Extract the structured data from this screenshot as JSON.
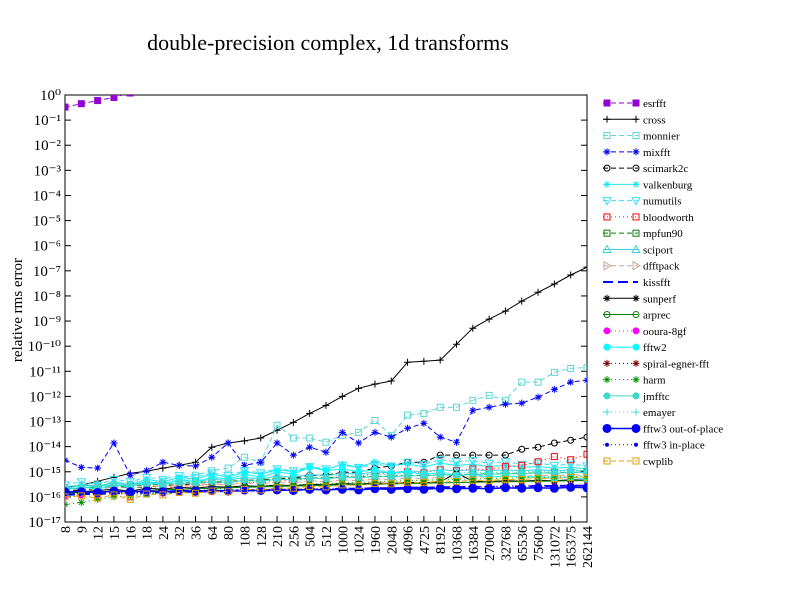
{
  "chart_data": {
    "type": "line",
    "title": "double-precision complex, 1d transforms",
    "ylabel": "relative rms error",
    "log_y": true,
    "categories": [
      "8",
      "9",
      "12",
      "15",
      "16",
      "18",
      "24",
      "32",
      "36",
      "64",
      "80",
      "108",
      "128",
      "210",
      "256",
      "504",
      "512",
      "1000",
      "1024",
      "1960",
      "2048",
      "4096",
      "4725",
      "8192",
      "10368",
      "16384",
      "27000",
      "32768",
      "65536",
      "75600",
      "131072",
      "165375",
      "262144"
    ],
    "ylim": [
      1e-17,
      1
    ],
    "yticks": [
      {
        "value": 1e-17,
        "label": "10⁻¹⁷"
      },
      {
        "value": 1e-16,
        "label": "10⁻¹⁶"
      },
      {
        "value": 1e-15,
        "label": "10⁻¹⁵"
      },
      {
        "value": 1e-14,
        "label": "10⁻¹⁴"
      },
      {
        "value": 1e-13,
        "label": "10⁻¹³"
      },
      {
        "value": 1e-12,
        "label": "10⁻¹²"
      },
      {
        "value": 1e-11,
        "label": "10⁻¹¹"
      },
      {
        "value": 1e-10,
        "label": "10⁻¹⁰"
      },
      {
        "value": 1e-09,
        "label": "10⁻⁹"
      },
      {
        "value": 1e-08,
        "label": "10⁻⁸"
      },
      {
        "value": 1e-07,
        "label": "10⁻⁷"
      },
      {
        "value": 1e-06,
        "label": "10⁻⁶"
      },
      {
        "value": 1e-05,
        "label": "10⁻⁵"
      },
      {
        "value": 0.0001,
        "label": "10⁻⁴"
      },
      {
        "value": 0.001,
        "label": "10⁻³"
      },
      {
        "value": 0.01,
        "label": "10⁻²"
      },
      {
        "value": 0.1,
        "label": "10⁻¹"
      },
      {
        "value": 1,
        "label": "10⁰"
      }
    ],
    "legend": "right",
    "series": [
      {
        "name": "esrfft",
        "color": "#9400d3",
        "values": [
          0.33,
          0.45,
          0.6,
          0.8,
          1.2,
          null,
          null,
          null,
          null,
          null,
          null,
          null,
          null,
          null,
          null,
          null,
          null,
          null,
          null,
          null,
          null,
          null,
          null,
          null,
          null,
          null,
          null,
          null,
          null,
          null,
          null,
          null,
          null
        ]
      },
      {
        "name": "cross",
        "color": "#000000",
        "values": [
          2.4e-16,
          2.9e-16,
          4.2e-16,
          6e-16,
          8.7e-16,
          1.05e-15,
          1.4e-15,
          1.8e-15,
          2.4e-15,
          9.5e-15,
          1.4e-14,
          1.7e-14,
          2.2e-14,
          4.5e-14,
          9.3e-14,
          2.1e-13,
          4.4e-13,
          1e-12,
          2.1e-12,
          3.1e-12,
          4.1e-12,
          2.3e-11,
          2.5e-11,
          2.8e-11,
          1.2e-10,
          5.2e-10,
          1.2e-09,
          2.5e-09,
          6.2e-09,
          1.4e-08,
          3e-08,
          6.8e-08,
          1.4e-07
        ]
      },
      {
        "name": "monnier",
        "color": "#5cd6d6",
        "values": [
          1.8e-16,
          2.2e-16,
          2.4e-16,
          2.9e-16,
          2.9e-16,
          3.5e-16,
          4.2e-16,
          5.5e-16,
          7.3e-16,
          1.1e-15,
          1.4e-15,
          3.8e-15,
          2.4e-15,
          7.1e-14,
          2.2e-14,
          2.2e-14,
          1.5e-14,
          2.8e-14,
          3.7e-14,
          1.1e-13,
          2.8e-14,
          1.8e-13,
          2.1e-13,
          3.7e-13,
          3.7e-13,
          7e-13,
          1.1e-12,
          7e-13,
          3.7e-12,
          3.7e-12,
          9.1e-12,
          1.3e-11,
          1.4e-11
        ]
      },
      {
        "name": "mixfft",
        "color": "#0000ff",
        "values": [
          2.9e-15,
          1.5e-15,
          1.4e-15,
          1.4e-14,
          7.3e-16,
          1.1e-15,
          2.4e-15,
          1.8e-15,
          1.7e-15,
          3.8e-15,
          1.4e-14,
          1.8e-15,
          2.4e-15,
          1.4e-14,
          4.6e-15,
          9.5e-15,
          6e-15,
          3.7e-14,
          1.4e-14,
          3.7e-14,
          2.4e-14,
          5.4e-14,
          8.5e-14,
          2.4e-14,
          1.5e-14,
          2.8e-13,
          3.7e-13,
          4.9e-13,
          5.4e-13,
          9.3e-13,
          1.9e-12,
          3.7e-12,
          4.4e-12
        ]
      },
      {
        "name": "scimark2c",
        "color": "#000000",
        "values": [
          1.8e-16,
          1.8e-16,
          2.2e-16,
          2.4e-16,
          2.4e-16,
          2.4e-16,
          2.9e-16,
          2.9e-16,
          3.5e-16,
          3.8e-16,
          3.8e-16,
          4.6e-16,
          4.6e-16,
          5.5e-16,
          5.5e-16,
          7.3e-16,
          7.3e-16,
          9.5e-16,
          9.5e-16,
          1.4e-15,
          1.7e-15,
          2.4e-15,
          2.4e-15,
          4.6e-15,
          4.6e-15,
          4.6e-15,
          4.6e-15,
          4.6e-15,
          7.9e-15,
          9.5e-15,
          1.4e-14,
          1.8e-14,
          2.4e-14
        ]
      },
      {
        "name": "valkenburg",
        "color": "#1ee8f0",
        "values": [
          2e-16,
          3e-16,
          2.5e-16,
          4e-16,
          3e-16,
          5e-16,
          4e-16,
          6e-16,
          5e-16,
          8e-16,
          6e-16,
          1e-15,
          8e-16,
          1.2e-15,
          1e-15,
          1.5e-15,
          1.2e-15,
          2e-15,
          1.5e-15,
          2.5e-15,
          1.8e-15,
          2e-15,
          1.6e-15,
          2.2e-15,
          1.8e-15,
          2e-15,
          1.6e-15,
          1.8e-15,
          1.5e-15,
          1.6e-15,
          1.4e-15,
          1.5e-15,
          1.3e-15
        ]
      },
      {
        "name": "numutils",
        "color": "#33e0ff",
        "values": [
          3e-16,
          4e-16,
          3e-16,
          5e-16,
          4e-16,
          6e-16,
          5e-16,
          7e-16,
          6e-16,
          9e-16,
          7e-16,
          1.1e-15,
          9e-16,
          1.3e-15,
          1.1e-15,
          1.6e-15,
          1.3e-15,
          1.8e-15,
          1.5e-15,
          2e-15,
          1.7e-15,
          2.4e-15,
          2e-15,
          3e-15,
          2.5e-15,
          2.8e-15,
          2.2e-15,
          2.5e-15,
          2e-15,
          2.2e-15,
          1.8e-15,
          2e-15,
          1.7e-15
        ]
      },
      {
        "name": "bloodworth",
        "color": "#ff0000",
        "values": [
          1.5e-16,
          1.8e-16,
          1.2e-16,
          2e-16,
          1e-16,
          2.5e-16,
          2e-16,
          3e-16,
          2.5e-16,
          3.5e-16,
          3e-16,
          4e-16,
          3.5e-16,
          5e-16,
          4e-16,
          6e-16,
          5e-16,
          7e-16,
          6e-16,
          9e-16,
          8e-16,
          1e-15,
          9e-16,
          1.2e-15,
          1.1e-15,
          1.3e-15,
          1.2e-15,
          1.6e-15,
          1.8e-15,
          2.5e-15,
          4e-15,
          3e-15,
          5e-15
        ]
      },
      {
        "name": "mpfun90",
        "color": "#008000",
        "values": [
          2e-16,
          2.2e-16,
          2.5e-16,
          2.4e-16,
          2.8e-16,
          3e-16,
          3.2e-16,
          3.5e-16,
          3.8e-16,
          4e-16,
          4.2e-16,
          4.5e-16,
          4.8e-16,
          5e-16,
          5.2e-16,
          5.5e-16,
          5.8e-16,
          6e-16,
          6.2e-16,
          6.5e-16,
          6.8e-16,
          7e-16,
          7.2e-16,
          7.5e-16,
          7.8e-16,
          8e-16,
          8.2e-16,
          8.5e-16,
          8.8e-16,
          9e-16,
          9.2e-16,
          9.5e-16,
          9.8e-16
        ]
      },
      {
        "name": "sciport",
        "color": "#40d0e0",
        "values": [
          2.5e-16,
          3e-16,
          2.8e-16,
          3.5e-16,
          3e-16,
          4e-16,
          3.5e-16,
          4.5e-16,
          4e-16,
          5e-16,
          4.5e-16,
          6e-16,
          5e-16,
          7e-16,
          6e-16,
          8e-16,
          7e-16,
          9e-16,
          8e-16,
          1e-15,
          9e-16,
          1.1e-15,
          1e-15,
          1.2e-15,
          1.1e-15,
          1.2e-15,
          1.1e-15,
          1.2e-15,
          1.1e-15,
          1.2e-15,
          1.1e-15,
          1.2e-15,
          1.1e-15
        ]
      },
      {
        "name": "dfftpack",
        "color": "#c8a898",
        "values": [
          1.8e-16,
          2e-16,
          2.2e-16,
          2.5e-16,
          2.2e-16,
          2.8e-16,
          2.6e-16,
          3e-16,
          2.8e-16,
          3.3e-16,
          3e-16,
          3.6e-16,
          3.3e-16,
          4e-16,
          3.6e-16,
          4.4e-16,
          4e-16,
          4.8e-16,
          4.4e-16,
          5.2e-16,
          4.8e-16,
          5.6e-16,
          5.2e-16,
          6e-16,
          5.6e-16,
          6.4e-16,
          6e-16,
          6.8e-16,
          6.4e-16,
          7.2e-16,
          6.8e-16,
          7.6e-16,
          7.2e-16
        ]
      },
      {
        "name": "kissfft",
        "color": "#0000ff",
        "values": [
          1.2e-16,
          1.3e-16,
          1.3e-16,
          1.4e-16,
          1.4e-16,
          1.5e-16,
          1.5e-16,
          1.6e-16,
          1.6e-16,
          1.7e-16,
          1.7e-16,
          1.8e-16,
          1.8e-16,
          1.9e-16,
          1.9e-16,
          2e-16,
          2e-16,
          2.1e-16,
          2.1e-16,
          2.2e-16,
          2.2e-16,
          2.3e-16,
          2.3e-16,
          2.4e-16,
          2.4e-16,
          2.5e-16,
          2.5e-16,
          2.6e-16,
          2.6e-16,
          2.7e-16,
          2.7e-16,
          2.8e-16,
          2.8e-16
        ]
      },
      {
        "name": "sunperf",
        "color": "#000000",
        "values": [
          1.5e-16,
          1.6e-16,
          1.8e-16,
          2e-16,
          1.7e-16,
          2.2e-16,
          2e-16,
          2.4e-16,
          2.2e-16,
          2.6e-16,
          2.4e-16,
          2.8e-16,
          2.6e-16,
          3e-16,
          2.8e-16,
          3.2e-16,
          3e-16,
          3.4e-16,
          3.2e-16,
          3.6e-16,
          3.4e-16,
          3.8e-16,
          3.6e-16,
          4e-16,
          9e-16,
          4.2e-16,
          4e-16,
          4.4e-16,
          4.2e-16,
          4.6e-16,
          4.4e-16,
          4.8e-16,
          4.6e-16
        ]
      },
      {
        "name": "arprec",
        "color": "#008000",
        "values": [
          1.4e-16,
          1.5e-16,
          1.6e-16,
          1.7e-16,
          1.6e-16,
          1.8e-16,
          1.9e-16,
          2e-16,
          2.1e-16,
          2.2e-16,
          2.3e-16,
          2.4e-16,
          2.5e-16,
          2.6e-16,
          2.7e-16,
          2.8e-16,
          2.9e-16,
          3e-16,
          3.1e-16,
          3.2e-16,
          3.3e-16,
          3.4e-16,
          3.5e-16,
          3.6e-16,
          3.7e-16,
          3.8e-16,
          3.9e-16,
          4e-16,
          4.1e-16,
          4.2e-16,
          4.3e-16,
          4.4e-16,
          4.5e-16
        ]
      },
      {
        "name": "ooura-8gf",
        "color": "#ff00ff",
        "values": [
          1.1e-16,
          1.2e-16,
          1.2e-16,
          1.3e-16,
          1.3e-16,
          1.4e-16,
          1.4e-16,
          1.5e-16,
          1.5e-16,
          1.6e-16,
          1.6e-16,
          1.7e-16,
          1.7e-16,
          1.8e-16,
          1.8e-16,
          1.9e-16,
          1.9e-16,
          2e-16,
          2e-16,
          2.1e-16,
          2.1e-16,
          2.2e-16,
          2.2e-16,
          2.3e-16,
          2.3e-16,
          2.4e-16,
          2.4e-16,
          2.5e-16,
          2.5e-16,
          2.6e-16,
          2.6e-16,
          2.7e-16,
          2.7e-16
        ]
      },
      {
        "name": "fftw2",
        "color": "#00ffff",
        "values": [
          1.8e-16,
          2.5e-16,
          2e-16,
          3e-16,
          2.5e-16,
          4e-16,
          3e-16,
          5e-16,
          4e-16,
          6e-16,
          5e-16,
          8e-16,
          6e-16,
          1e-15,
          8e-16,
          1.5e-15,
          1.1e-15,
          1.3e-15,
          1e-15,
          1.2e-15,
          9e-16,
          1e-15,
          8e-16,
          9e-16,
          7e-16,
          8e-16,
          6e-16,
          7e-16,
          6e-16,
          6.5e-16,
          5.5e-16,
          6e-16,
          5e-16
        ]
      },
      {
        "name": "spiral-egner-fft",
        "color": "#800000",
        "values": [
          1.4e-16,
          1.5e-16,
          1.4e-16,
          1.6e-16,
          1.5e-16,
          1.7e-16,
          1.6e-16,
          1.8e-16,
          1.7e-16,
          1.9e-16,
          1.8e-16,
          2e-16,
          1.9e-16,
          2.1e-16,
          2e-16,
          2.2e-16,
          2.1e-16,
          2.3e-16,
          2.2e-16,
          2.4e-16,
          2.3e-16,
          2.5e-16,
          2.4e-16,
          2.6e-16,
          2.5e-16,
          2.7e-16,
          2.6e-16,
          2.8e-16,
          2.7e-16,
          2.9e-16,
          2.8e-16,
          3e-16,
          2.9e-16
        ]
      },
      {
        "name": "harm",
        "color": "#009900",
        "values": [
          5e-17,
          6e-17,
          8e-17,
          1e-16,
          1.1e-16,
          1.3e-16,
          1.5e-16,
          1.6e-16,
          1.8e-16,
          2e-16,
          2.2e-16,
          2.4e-16,
          2.6e-16,
          2.8e-16,
          3e-16,
          3.2e-16,
          3.4e-16,
          3.6e-16,
          3.8e-16,
          4e-16,
          4.2e-16,
          4.4e-16,
          4.6e-16,
          4.8e-16,
          5e-16,
          5.2e-16,
          5.4e-16,
          5.6e-16,
          5.8e-16,
          6e-16,
          6.2e-16,
          6.4e-16,
          6.6e-16
        ]
      },
      {
        "name": "jmfftc",
        "color": "#40d8c8",
        "values": [
          2e-16,
          2.3e-16,
          2.6e-16,
          3e-16,
          2.8e-16,
          3.3e-16,
          3.2e-16,
          3.6e-16,
          3.5e-16,
          4e-16,
          3.8e-16,
          4.5e-16,
          4.2e-16,
          5e-16,
          4.8e-16,
          5.5e-16,
          5.2e-16,
          6e-16,
          5.8e-16,
          6.5e-16,
          6.2e-16,
          7e-16,
          6.8e-16,
          7.5e-16,
          7.2e-16,
          8e-16,
          7.8e-16,
          8.5e-16,
          8.2e-16,
          9e-16,
          8.8e-16,
          9.5e-16,
          9.2e-16
        ]
      },
      {
        "name": "emayer",
        "color": "#40e0e0",
        "values": [
          2.5e-16,
          3e-16,
          3.5e-16,
          4e-16,
          3.8e-16,
          4.5e-16,
          4.2e-16,
          5e-16,
          4.8e-16,
          5.5e-16,
          5.2e-16,
          6e-16,
          5.8e-16,
          6.5e-16,
          6.2e-16,
          7e-16,
          6.8e-16,
          7.5e-16,
          7.2e-16,
          8e-16,
          7.8e-16,
          8.5e-16,
          8.2e-16,
          9e-16,
          8.8e-16,
          9.5e-16,
          9.2e-16,
          1e-15,
          9.8e-16,
          1.05e-15,
          1e-15,
          1.1e-15,
          1.05e-15
        ]
      },
      {
        "name": "fftw3 out-of-place",
        "color": "#0000ff",
        "values": [
          1.6e-16,
          1.6e-16,
          1.5e-16,
          1.7e-16,
          1.6e-16,
          1.7e-16,
          1.6e-16,
          1.8e-16,
          1.7e-16,
          1.8e-16,
          1.7e-16,
          1.9e-16,
          1.8e-16,
          1.9e-16,
          1.8e-16,
          2e-16,
          1.9e-16,
          2e-16,
          1.9e-16,
          2.1e-16,
          2e-16,
          2.1e-16,
          2e-16,
          2.2e-16,
          2.1e-16,
          2.2e-16,
          2.1e-16,
          2.3e-16,
          2.2e-16,
          2.3e-16,
          2.2e-16,
          2.4e-16,
          2.3e-16
        ]
      },
      {
        "name": "fftw3 in-place",
        "color": "#0000ff",
        "values": [
          1.3e-16,
          1.4e-16,
          1.3e-16,
          1.5e-16,
          1.4e-16,
          1.6e-16,
          1.5e-16,
          1.7e-16,
          1.6e-16,
          1.8e-16,
          1.7e-16,
          1.9e-16,
          1.8e-16,
          2e-16,
          1.9e-16,
          2.1e-16,
          2e-16,
          2.2e-16,
          2.1e-16,
          2.3e-16,
          2.2e-16,
          2.4e-16,
          2.3e-16,
          2.5e-16,
          2.4e-16,
          2.6e-16,
          2.5e-16,
          2.7e-16,
          2.6e-16,
          2.8e-16,
          2.7e-16,
          2.9e-16,
          2.8e-16
        ]
      },
      {
        "name": "cwplib",
        "color": "#e0a000",
        "values": [
          1e-16,
          1.1e-16,
          9e-17,
          1.2e-16,
          8e-17,
          1.3e-16,
          1.2e-16,
          1.5e-16,
          1.4e-16,
          1.7e-16,
          1.6e-16,
          2e-16,
          1.9e-16,
          2.3e-16,
          2.2e-16,
          2.6e-16,
          2.5e-16,
          3e-16,
          2.9e-16,
          3.4e-16,
          3.3e-16,
          3.8e-16,
          3.7e-16,
          4.2e-16,
          4.1e-16,
          4.6e-16,
          4.5e-16,
          5e-16,
          4.9e-16,
          5.5e-16,
          5.4e-16,
          6e-16,
          5.9e-16
        ]
      }
    ]
  }
}
